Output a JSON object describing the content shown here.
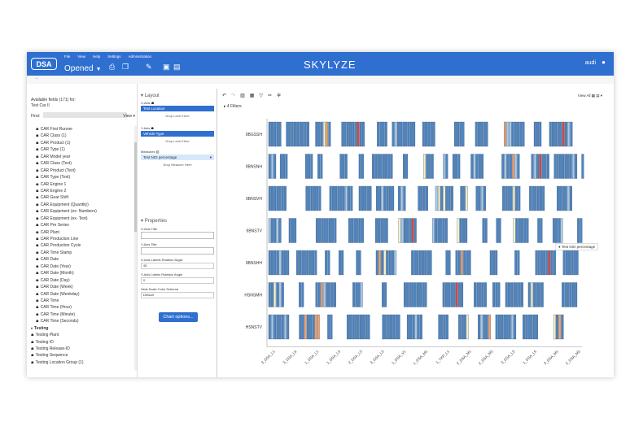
{
  "header": {
    "logo": "DSA",
    "menu": [
      "File",
      "View",
      "Help",
      "Settings",
      "Administration"
    ],
    "opened": "Opened",
    "brand": "SKYLYZE",
    "user": "audi"
  },
  "left_panel": {
    "title": "Available fields (171) for:",
    "subtitle": "Test Car II",
    "find_label": "Find:",
    "view_label": "View",
    "fields": [
      {
        "label": "CAR First Runner",
        "sub": true
      },
      {
        "label": "CAR Class (1)",
        "sub": true
      },
      {
        "label": "CAR Product (1)",
        "sub": true
      },
      {
        "label": "CAR Type (1)",
        "sub": true
      },
      {
        "label": "CAR Model year",
        "sub": true
      },
      {
        "label": "CAR Class (Text)",
        "sub": true
      },
      {
        "label": "CAR Product (Text)",
        "sub": true
      },
      {
        "label": "CAR Type (Text)",
        "sub": true
      },
      {
        "label": "CAR Engine 1",
        "sub": true
      },
      {
        "label": "CAR Engine 2",
        "sub": true
      },
      {
        "label": "CAR Gear Shift",
        "sub": true
      },
      {
        "label": "CAR Equipment (Quantity)",
        "sub": true
      },
      {
        "label": "CAR Equipment (ex- Numbers)",
        "sub": true
      },
      {
        "label": "CAR Equipment (ex- Text)",
        "sub": true
      },
      {
        "label": "CAR Pre Series",
        "sub": true
      },
      {
        "label": "CAR Plant",
        "sub": true
      },
      {
        "label": "CAR Production Line",
        "sub": true
      },
      {
        "label": "CAR Production Cycle",
        "sub": true
      },
      {
        "label": "CAR Time Stamp",
        "sub": true
      },
      {
        "label": "CAR Date",
        "sub": true
      },
      {
        "label": "CAR Date (Year)",
        "sub": true
      },
      {
        "label": "CAR Date (Month)",
        "sub": true
      },
      {
        "label": "CAR Date (Day)",
        "sub": true
      },
      {
        "label": "CAR Date (Week)",
        "sub": true
      },
      {
        "label": "CAR Date (Weekday)",
        "sub": true
      },
      {
        "label": "CAR Time",
        "sub": true
      },
      {
        "label": "CAR Time (Hour)",
        "sub": true
      },
      {
        "label": "CAR Time (Minute)",
        "sub": true
      },
      {
        "label": "CAR Time (Seconds)",
        "sub": true
      },
      {
        "label": "Testing",
        "group": true
      },
      {
        "label": "Testing Plant",
        "sub": false
      },
      {
        "label": "Testing ID",
        "sub": false
      },
      {
        "label": "Testing Release-ID",
        "sub": false
      },
      {
        "label": "Testing Sequence",
        "sub": false
      },
      {
        "label": "Testing Location Group (1)",
        "sub": false
      }
    ]
  },
  "layout": {
    "title": "Layout",
    "x_axis_label": "X-Axis",
    "x_axis_value": "Test Location",
    "y_axis_label": "Y-Axis",
    "y_axis_value": "Vehicle Type",
    "measures_label": "Measures",
    "measure_value": "Test NIO percentage",
    "drop_level": "Drop Level Here",
    "drop_measure": "Drop Measure Here"
  },
  "properties": {
    "title": "Properties",
    "x_title_label": "X-Axis Title",
    "y_title_label": "Y-Axis Title",
    "x_rot_label": "X-Axis Labels Rotation Angle",
    "x_rot_value": "45",
    "y_rot_label": "Y-Axis Labels Rotation Angle",
    "y_rot_value": "0",
    "color_label": "Heat Scale Color Schema",
    "color_value": "Default",
    "chart_options": "Chart options..."
  },
  "toolbar": {
    "view_all": "View All",
    "filters": "4 Filters"
  },
  "legend": "Test NIO percentage",
  "chart_data": {
    "type": "heatmap",
    "rows": [
      "9BGSSH",
      "9BNSNH",
      "9BNSVH",
      "9BNSTV",
      "9BNSHH",
      "HSNSMH",
      "HSNSTV"
    ],
    "x_labels": [
      "3_DSA_L1",
      "3_DSA_L6",
      "1_DSA_L1",
      "1_DSA_L3",
      "2_DSA_L3",
      "3_DSA_L3",
      "1_DSA_V1",
      "1_DSA_M1",
      "1_TKP_L1",
      "2_DSA_M1",
      "2_DSA_M3",
      "3_DSA_L3",
      "1_DSA_L5",
      "3_DSA_M1",
      "2_DSA_M3"
    ],
    "colors": {
      "base": "#4f84be",
      "light": "#a9c9e6",
      "cream": "#f7f0c4",
      "orange": "#f2a36b",
      "red": "#d5473e"
    },
    "grid": false
  }
}
